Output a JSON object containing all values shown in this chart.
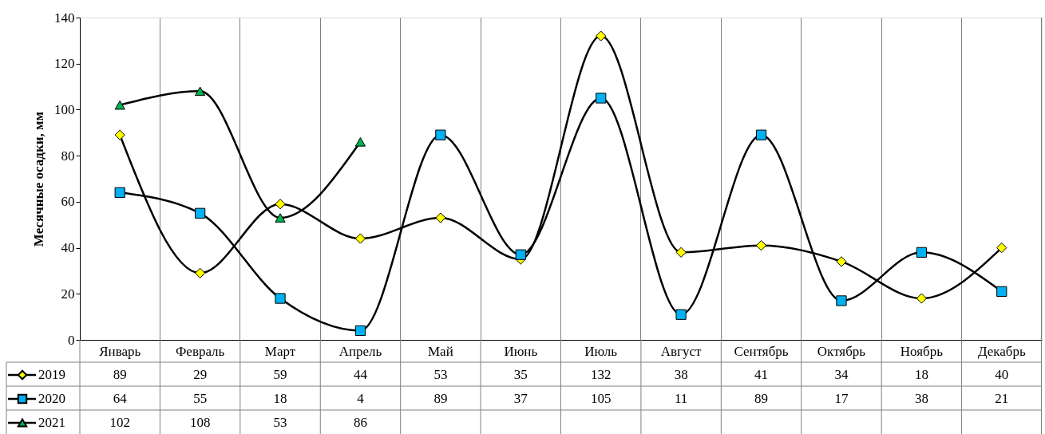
{
  "chart_data": {
    "type": "line",
    "ylabel": "Месячные осадки, мм",
    "categories": [
      "Январь",
      "Февраль",
      "Март",
      "Апрель",
      "Май",
      "Июнь",
      "Июль",
      "Август",
      "Сентябрь",
      "Октябрь",
      "Ноябрь",
      "Декабрь"
    ],
    "ylim": [
      0,
      140
    ],
    "yticks": [
      0,
      20,
      40,
      60,
      80,
      100,
      120,
      140
    ],
    "grid": "x",
    "legend": "bottom",
    "data_labels": true,
    "line_style": "solid",
    "series": [
      {
        "name": "2019",
        "color": "#ffff00",
        "marker": "diamond",
        "values": [
          89,
          29,
          59,
          44,
          53,
          35,
          132,
          38,
          41,
          34,
          18,
          40
        ]
      },
      {
        "name": "2020",
        "color": "#00b0f0",
        "marker": "square",
        "values": [
          64,
          55,
          18,
          4,
          89,
          37,
          105,
          11,
          89,
          17,
          38,
          21
        ]
      },
      {
        "name": "2021",
        "color": "#00b050",
        "marker": "triangle",
        "values": [
          102,
          108,
          53,
          86,
          null,
          null,
          null,
          null,
          null,
          null,
          null,
          null
        ]
      }
    ]
  }
}
